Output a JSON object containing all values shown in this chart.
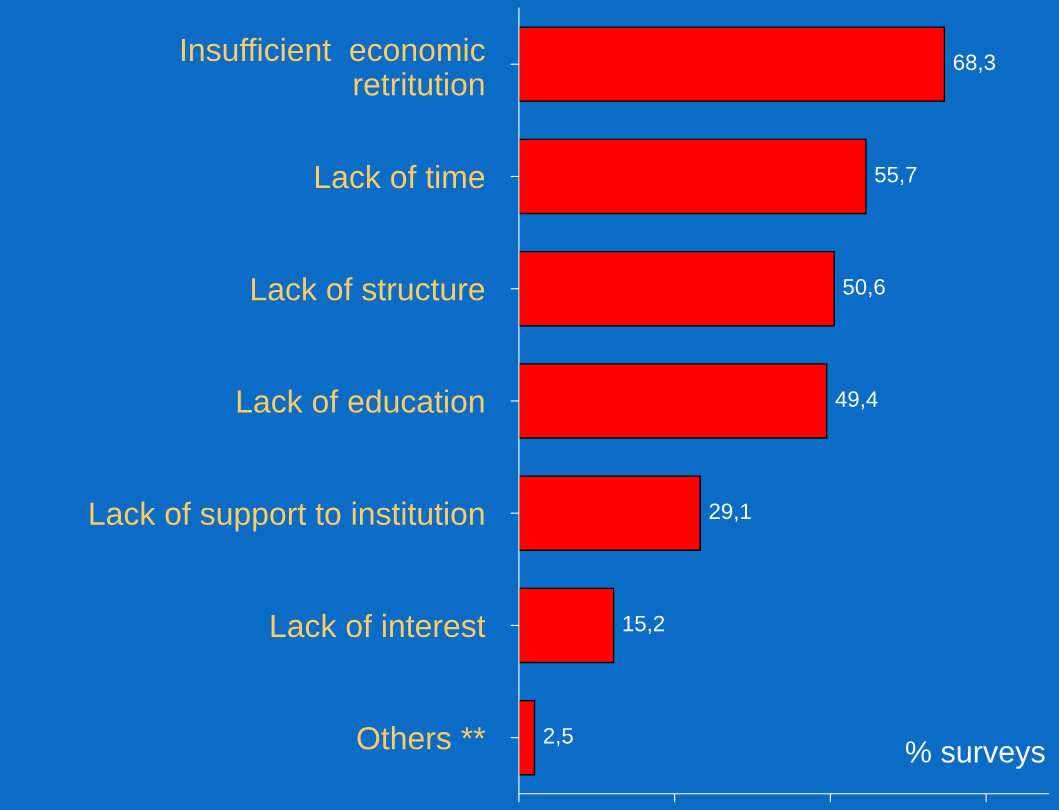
{
  "chart_data": {
    "type": "bar",
    "orientation": "horizontal",
    "categories": [
      "Insufficient  economic\nretritution",
      "Lack of time",
      "Lack of structure",
      "Lack of education",
      "Lack of support to institution",
      "Lack of interest",
      "Others **"
    ],
    "values": [
      68.3,
      55.7,
      50.6,
      49.4,
      29.1,
      15.2,
      2.5
    ],
    "value_labels": [
      "68,3",
      "55,7",
      "50,6",
      "49,4",
      "29,1",
      "15,2",
      "2,5"
    ],
    "color": "#ff0000",
    "xlim": [
      0,
      85
    ],
    "xticks": [
      {
        "value": 0,
        "label": null
      },
      {
        "value": 25,
        "label": null
      },
      {
        "value": 50,
        "label": null
      },
      {
        "value": 75,
        "label": null
      }
    ],
    "tick_labels": "y",
    "grid": false,
    "legend": false,
    "annotations": [
      "% surveys"
    ]
  }
}
